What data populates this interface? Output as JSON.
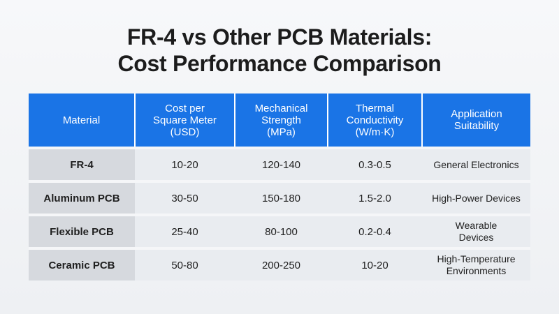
{
  "title_lines": [
    "FR-4 vs Other PCB Materials:",
    "Cost Performance Comparison"
  ],
  "chart_data": {
    "type": "table",
    "title": "FR-4 vs Other PCB Materials: Cost Performance Comparison",
    "columns": [
      "Material",
      "Cost per Square Meter (USD)",
      "Mechanical Strength (MPa)",
      "Thermal Conductivity (W/m·K)",
      "Application Suitability"
    ],
    "header_lines": [
      [
        "Material"
      ],
      [
        "Cost per",
        "Square Meter",
        "(USD)"
      ],
      [
        "Mechanical",
        "Strength",
        "(MPa)"
      ],
      [
        "Thermal",
        "Conductivity",
        "(W/m·K)"
      ],
      [
        "Application",
        "Suitability"
      ]
    ],
    "rows": [
      {
        "material": "FR-4",
        "cost": "10-20",
        "strength": "120-140",
        "thermal": "0.3-0.5",
        "application": [
          "General Electronics"
        ]
      },
      {
        "material": "Aluminum PCB",
        "cost": "30-50",
        "strength": "150-180",
        "thermal": "1.5-2.0",
        "application": [
          "High-Power Devices"
        ]
      },
      {
        "material": "Flexible PCB",
        "cost": "25-40",
        "strength": "80-100",
        "thermal": "0.2-0.4",
        "application": [
          "Wearable",
          "Devices"
        ]
      },
      {
        "material": "Ceramic PCB",
        "cost": "50-80",
        "strength": "200-250",
        "thermal": "10-20",
        "application": [
          "High-Temperature",
          "Environments"
        ]
      }
    ]
  },
  "colors": {
    "header_bg": "#1a74e6",
    "material_cell_bg": "#d6d9de",
    "cell_bg": "#e9ecf0"
  }
}
